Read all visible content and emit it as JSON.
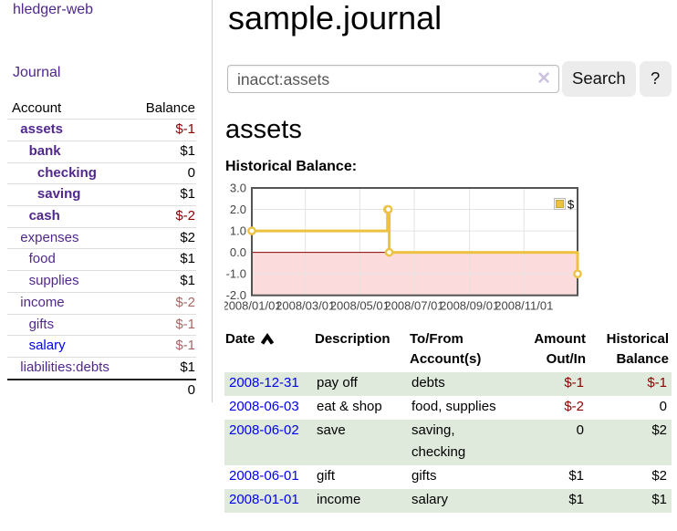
{
  "app": {
    "title": "hledger-web",
    "nav": {
      "journal": "Journal"
    }
  },
  "sidebar": {
    "accounts_table": {
      "account_header": "Account",
      "balance_header": "Balance",
      "rows": [
        {
          "account": "assets",
          "balance": "$-1",
          "depth": 1,
          "bold": true,
          "balance_style": "neg",
          "link_style": "visited"
        },
        {
          "account": "bank",
          "balance": "$1",
          "depth": 2,
          "bold": true,
          "balance_style": "pos",
          "link_style": "visited"
        },
        {
          "account": "checking",
          "balance": "0",
          "depth": 3,
          "bold": true,
          "balance_style": "pos",
          "link_style": "visited"
        },
        {
          "account": "saving",
          "balance": "$1",
          "depth": 3,
          "bold": true,
          "balance_style": "pos",
          "link_style": "visited"
        },
        {
          "account": "cash",
          "balance": "$-2",
          "depth": 2,
          "bold": true,
          "balance_style": "neg",
          "link_style": "visited"
        },
        {
          "account": "expenses",
          "balance": "$2",
          "depth": 1,
          "bold": false,
          "balance_style": "pos",
          "link_style": "visited"
        },
        {
          "account": "food",
          "balance": "$1",
          "depth": 2,
          "bold": false,
          "balance_style": "pos",
          "link_style": "visited"
        },
        {
          "account": "supplies",
          "balance": "$1",
          "depth": 2,
          "bold": false,
          "balance_style": "pos",
          "link_style": "visited"
        },
        {
          "account": "income",
          "balance": "$-2",
          "depth": 1,
          "bold": false,
          "balance_style": "neg-muted",
          "link_style": "visited"
        },
        {
          "account": "gifts",
          "balance": "$-1",
          "depth": 2,
          "bold": false,
          "balance_style": "neg-muted",
          "link_style": "visited"
        },
        {
          "account": "salary",
          "balance": "$-1",
          "depth": 2,
          "bold": false,
          "balance_style": "neg-muted",
          "link_style": "unvisited"
        },
        {
          "account": "liabilities:debts",
          "balance": "$1",
          "depth": 1,
          "bold": false,
          "balance_style": "pos",
          "link_style": "visited"
        }
      ],
      "total": "0"
    }
  },
  "main": {
    "page_title": "sample.journal",
    "search": {
      "value": "inacct:assets",
      "clear_icon": "✕",
      "search_button": "Search",
      "help_button": "?"
    },
    "account_heading": "assets",
    "chart_label": "Historical Balance:"
  },
  "chart_data": {
    "type": "line-step",
    "title": "Historical Balance",
    "xlabel": "",
    "ylabel": "",
    "xlim_dates": [
      "2008-01-01",
      "2008-12-31"
    ],
    "ylim": [
      -2,
      3
    ],
    "x_ticks": [
      {
        "date": "2008-01-01",
        "label": "2008/01/01"
      },
      {
        "date": "2008-03-01",
        "label": "2008/03/01"
      },
      {
        "date": "2008-05-01",
        "label": "2008/05/01"
      },
      {
        "date": "2008-07-01",
        "label": "2008/07/01"
      },
      {
        "date": "2008-09-01",
        "label": "2008/09/01"
      },
      {
        "date": "2008-11-01",
        "label": "2008/11/01"
      }
    ],
    "y_ticks": [
      {
        "value": 3,
        "label": "3.0"
      },
      {
        "value": 2,
        "label": "2.0"
      },
      {
        "value": 1,
        "label": "1.0"
      },
      {
        "value": 0,
        "label": "0.0"
      },
      {
        "value": -1,
        "label": "-1.0"
      },
      {
        "value": -2,
        "label": "-2.0"
      }
    ],
    "series": [
      {
        "name": "$",
        "color": "#edc240",
        "points": [
          {
            "date": "2008-01-01",
            "value": 1
          },
          {
            "date": "2008-06-01",
            "value": 2
          },
          {
            "date": "2008-06-02",
            "value": 2
          },
          {
            "date": "2008-06-03",
            "value": 0
          },
          {
            "date": "2008-12-31",
            "value": -1
          }
        ]
      }
    ],
    "legend": {
      "label": "$",
      "position": "top-right"
    },
    "colors": {
      "grid": "#e3e3e3",
      "border": "#545454",
      "zero_line": "#8b0000",
      "negative_region": "#fbdbdb",
      "tick_text": "#444444",
      "marker_fill": "#ffffff"
    }
  },
  "register": {
    "headers": [
      {
        "lines": "Date",
        "sorted": "asc",
        "align": "left"
      },
      {
        "lines": "Description",
        "sorted": null,
        "align": "left"
      },
      {
        "lines": "To/From\nAccount(s)",
        "sorted": null,
        "align": "left"
      },
      {
        "lines": "Amount\nOut/In",
        "sorted": null,
        "align": "right"
      },
      {
        "lines": "Historical\nBalance",
        "sorted": null,
        "align": "right"
      }
    ],
    "rows": [
      {
        "date": "2008-12-31",
        "description": "pay off",
        "accounts": "debts",
        "amount": "$-1",
        "amount_style": "neg",
        "balance": "$-1",
        "balance_style": "neg"
      },
      {
        "date": "2008-06-03",
        "description": "eat & shop",
        "accounts": "food, supplies",
        "amount": "$-2",
        "amount_style": "neg",
        "balance": "0",
        "balance_style": "pos"
      },
      {
        "date": "2008-06-02",
        "description": "save",
        "accounts": "saving, checking",
        "amount": "0",
        "amount_style": "pos",
        "balance": "$2",
        "balance_style": "pos"
      },
      {
        "date": "2008-06-01",
        "description": "gift",
        "accounts": "gifts",
        "amount": "$1",
        "amount_style": "pos",
        "balance": "$2",
        "balance_style": "pos"
      },
      {
        "date": "2008-01-01",
        "description": "income",
        "accounts": "salary",
        "amount": "$1",
        "amount_style": "pos",
        "balance": "$1",
        "balance_style": "pos"
      }
    ]
  }
}
